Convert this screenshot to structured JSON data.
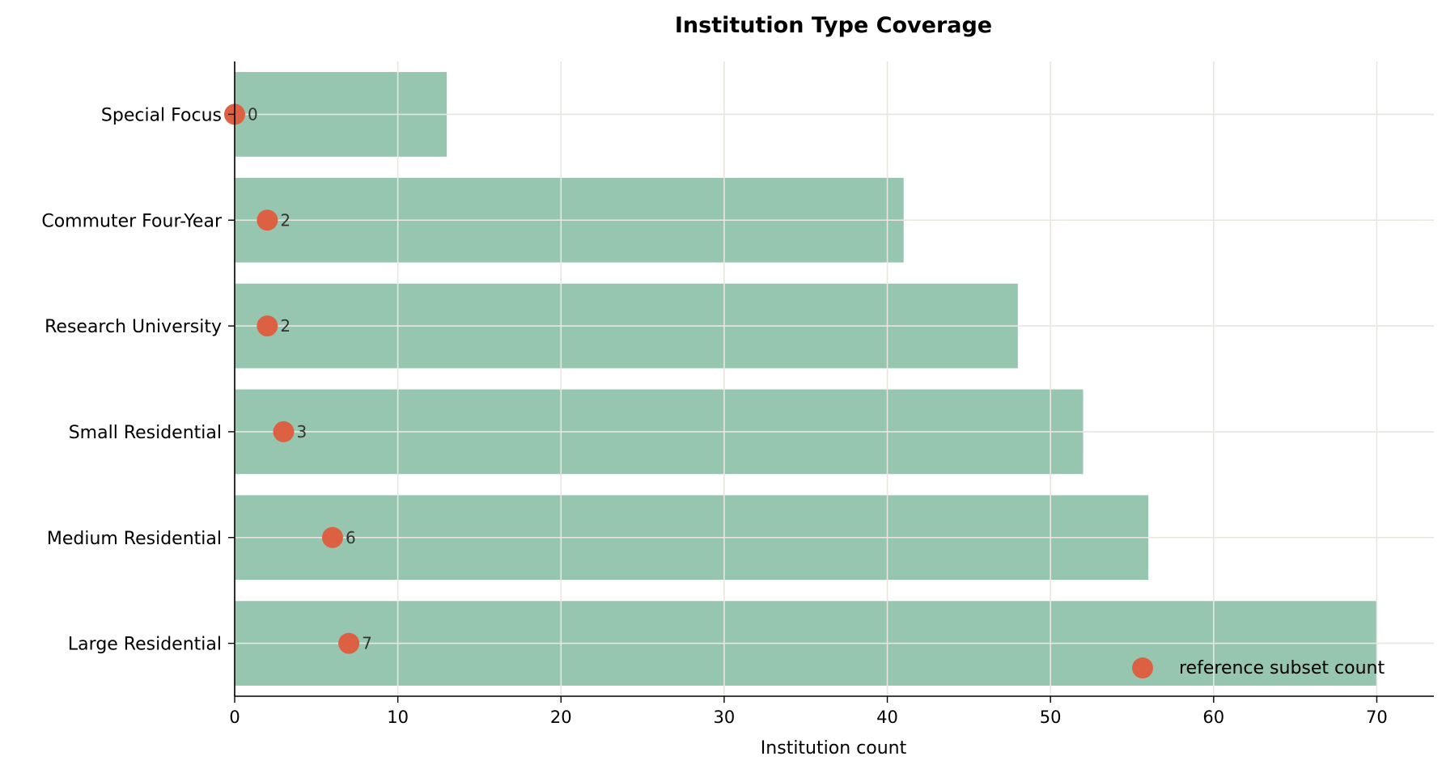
{
  "chart_data": {
    "type": "bar",
    "orientation": "horizontal",
    "title": "Institution Type Coverage",
    "xlabel": "Institution count",
    "ylabel": "",
    "xlim": [
      0,
      73.5
    ],
    "xticks": [
      0,
      10,
      20,
      30,
      40,
      50,
      60,
      70
    ],
    "grid": true,
    "categories": [
      "Special Focus",
      "Commuter Four-Year",
      "Research University",
      "Small Residential",
      "Medium Residential",
      "Large Residential"
    ],
    "series": [
      {
        "kind": "bar",
        "values": [
          13,
          41,
          48,
          52,
          56,
          70
        ],
        "color": "#96c5b0"
      },
      {
        "kind": "point",
        "name": "reference subset count",
        "values": [
          0,
          2,
          2,
          3,
          6,
          7
        ],
        "labels": [
          "0",
          "2",
          "2",
          "3",
          "6",
          "7"
        ],
        "color": "#dc6143"
      }
    ],
    "legend": {
      "placement": "bottom-right",
      "entries": [
        "reference subset count"
      ]
    },
    "colors": {
      "grid": "#e9e6df",
      "axis": "#000000",
      "label_text": "#333333"
    }
  }
}
